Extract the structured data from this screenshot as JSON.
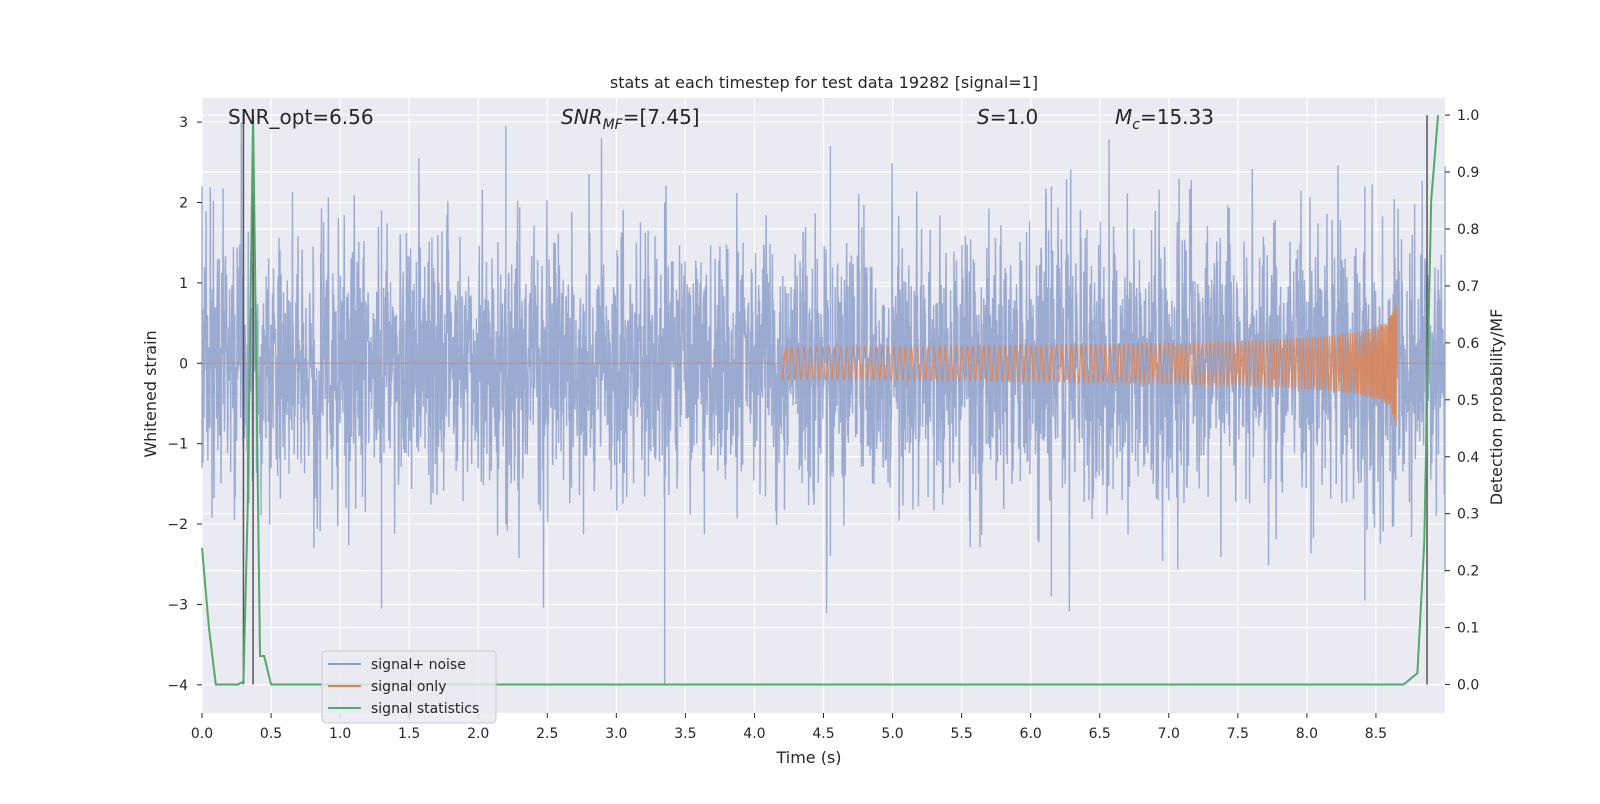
{
  "chart_data": {
    "type": "line",
    "title": "stats at each timestep for test data 19282 [signal=1]",
    "xlabel": "Time (s)",
    "ylabel": "Whitened strain",
    "ylabel_right": "Detection probability/MF",
    "xlim": [
      0,
      9.0
    ],
    "ylim": [
      -4.35,
      3.3
    ],
    "ylim_right": [
      -0.05,
      1.03
    ],
    "x_ticks": [
      "0.0",
      "0.5",
      "1.0",
      "1.5",
      "2.0",
      "2.5",
      "3.0",
      "3.5",
      "4.0",
      "4.5",
      "5.0",
      "5.5",
      "6.0",
      "6.5",
      "7.0",
      "7.5",
      "8.0",
      "8.5"
    ],
    "x_tick_values": [
      0,
      0.5,
      1.0,
      1.5,
      2.0,
      2.5,
      3.0,
      3.5,
      4.0,
      4.5,
      5.0,
      5.5,
      6.0,
      6.5,
      7.0,
      7.5,
      8.0,
      8.5
    ],
    "y_ticks": [
      "3",
      "2",
      "1",
      "0",
      "−1",
      "−2",
      "−3",
      "−4"
    ],
    "y_tick_values": [
      3,
      2,
      1,
      0,
      -1,
      -2,
      -3,
      -4
    ],
    "y_ticks_right": [
      "1.0",
      "0.9",
      "0.8",
      "0.7",
      "0.6",
      "0.5",
      "0.4",
      "0.3",
      "0.2",
      "0.1",
      "0.0"
    ],
    "y_tick_values_right": [
      1.0,
      0.9,
      0.8,
      0.7,
      0.6,
      0.5,
      0.4,
      0.3,
      0.2,
      0.1,
      0.0
    ],
    "grid": true,
    "legend_position": "lower-left",
    "annotations": {
      "snr_opt": "SNR_opt=6.56",
      "snr_mf_main": "SNR",
      "snr_mf_sub": "MF",
      "snr_mf_value": "=[7.45]",
      "s_symbol": "S",
      "s_value": "=1.0",
      "mc_main": "M",
      "mc_sub": "c",
      "mc_value": "=15.33"
    },
    "vertical_markers": [
      0.3,
      0.37,
      8.87
    ],
    "series": [
      {
        "name": "signal+ noise",
        "color": "#8c9fca",
        "description_envelope": "noise std ~0.9 across full window",
        "envelope_points": [
          {
            "x": 0.0,
            "min": -1.3,
            "max": 2.2
          },
          {
            "x": 1.3,
            "min": -3.05,
            "max": 1.9
          },
          {
            "x": 2.2,
            "min": -2.0,
            "max": 2.95
          },
          {
            "x": 3.35,
            "min": -4.0,
            "max": 2.0
          },
          {
            "x": 4.55,
            "min": -2.4,
            "max": 2.7
          },
          {
            "x": 6.15,
            "min": -2.9,
            "max": 2.2
          },
          {
            "x": 8.42,
            "min": -2.95,
            "max": 2.2
          },
          {
            "x": 9.0,
            "min": -2.6,
            "max": 2.45
          }
        ]
      },
      {
        "name": "signal only",
        "color": "#dd8452",
        "chirp_start": 4.2,
        "chirp_peak_time": 8.65,
        "chirp_peak_amplitude": 0.88
      },
      {
        "name": "signal statistics",
        "color": "#55a868",
        "axis": "right",
        "x": [
          0.0,
          0.05,
          0.1,
          0.2,
          0.26,
          0.3,
          0.33,
          0.37,
          0.42,
          0.45,
          0.5,
          1.0,
          2.0,
          3.0,
          4.0,
          4.5,
          5.0,
          6.0,
          7.0,
          8.0,
          8.7,
          8.8,
          8.85,
          8.87,
          8.9,
          8.95
        ],
        "y": [
          0.24,
          0.1,
          0.0,
          0.0,
          0.0,
          0.005,
          0.3,
          1.0,
          0.05,
          0.05,
          0.0,
          0.0,
          0.0,
          0.0,
          0.0,
          0.0,
          0.0,
          0.0,
          0.0,
          0.0,
          0.0,
          0.02,
          0.25,
          0.5,
          0.85,
          1.0
        ]
      }
    ]
  }
}
